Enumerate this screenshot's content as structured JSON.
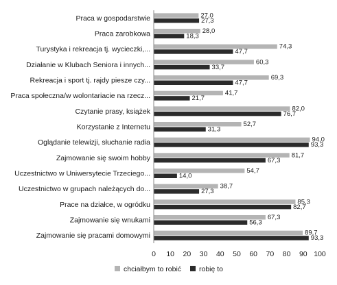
{
  "chart_data": {
    "type": "bar",
    "orientation": "horizontal",
    "categories": [
      "Praca w gospodarstwie",
      "Praca zarobkowa",
      "Turystyka i rekreacja tj. wycieczki,...",
      "Działanie w Klubach Seniora i innych...",
      "Rekreacja i sport tj. rajdy piesze czy...",
      "Praca społeczna/w wolontariacie na rzecz...",
      "Czytanie prasy, książek",
      "Korzystanie z Internetu",
      "Oglądanie telewizji, słuchanie radia",
      "Zajmowanie się swoim hobby",
      "Uczestnictwo w Uniwersytecie Trzeciego...",
      "Uczestnictwo w grupach należących do...",
      "Prace na działce, w ogródku",
      "Zajmowanie się wnukami",
      "Zajmowanie się pracami domowymi"
    ],
    "series": [
      {
        "name": "chciałbym to robić",
        "color": "#b4b4b4",
        "values": [
          27.0,
          28.0,
          74.3,
          60.3,
          69.3,
          41.7,
          82.0,
          52.7,
          94.0,
          81.7,
          54.7,
          38.7,
          85.3,
          67.3,
          89.7
        ],
        "labels": [
          "27,0",
          "28,0",
          "74,3",
          "60,3",
          "69,3",
          "41,7",
          "82,0",
          "52,7",
          "94,0",
          "81,7",
          "54,7",
          "38,7",
          "85,3",
          "67,3",
          "89,7"
        ]
      },
      {
        "name": "robię to",
        "color": "#2b2b2b",
        "values": [
          27.3,
          18.3,
          47.7,
          33.7,
          47.7,
          21.7,
          76.7,
          31.3,
          93.3,
          67.3,
          14.0,
          27.3,
          82.7,
          56.3,
          93.3
        ],
        "labels": [
          "27,3",
          "18,3",
          "47,7",
          "33,7",
          "47,7",
          "21,7",
          "76,7",
          "31,3",
          "93,3",
          "67,3",
          "14,0",
          "27,3",
          "82,7",
          "56,3",
          "93,3"
        ]
      }
    ],
    "xlim": [
      0,
      100
    ],
    "xticks": [
      "0",
      "10",
      "20",
      "30",
      "40",
      "50",
      "60",
      "70",
      "80",
      "90",
      "100"
    ],
    "grid": false,
    "legend_position": "bottom"
  }
}
